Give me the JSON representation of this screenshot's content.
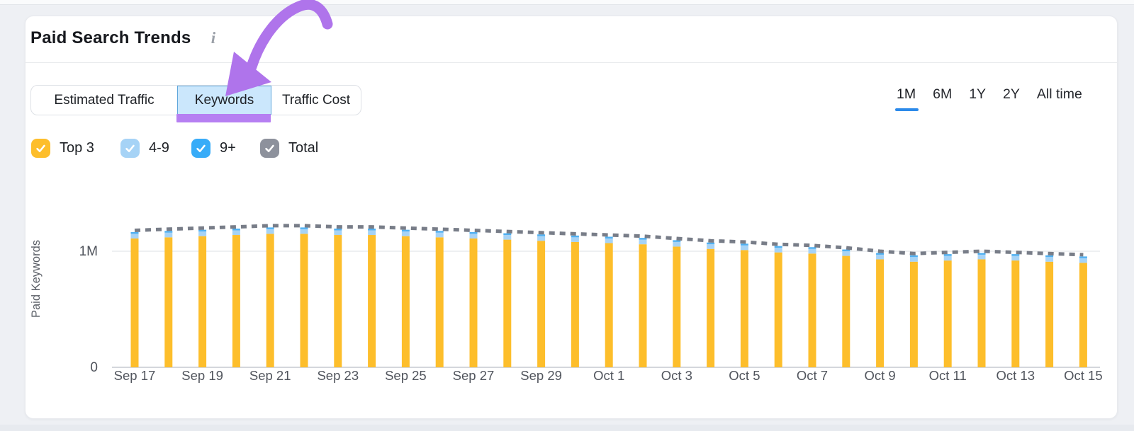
{
  "colors": {
    "page_bg": "#EEF0F4",
    "card_bg": "#FFFFFF",
    "divider": "#E8EAED",
    "accent_blue": "#2C8AEA",
    "active_tab_bg": "#CBE7FC",
    "active_tab_border": "#5FA7DC",
    "annotation_arrow_purple": "#AF74EB",
    "annotation_underline_purple": "#B67FF2",
    "bar_yellow": "#FDBE2B",
    "bar_light_blue": "#A6D3F6",
    "bar_blue": "#38ACF8",
    "total_line_gray": "#787D88"
  },
  "header": {
    "title": "Paid Search Trends",
    "info_icon": "i"
  },
  "tabs": [
    {
      "label": "Estimated Traffic",
      "active": false
    },
    {
      "label": "Keywords",
      "active": true
    },
    {
      "label": "Traffic Cost",
      "active": false
    }
  ],
  "time_ranges": [
    {
      "label": "1M",
      "active": true
    },
    {
      "label": "6M",
      "active": false
    },
    {
      "label": "1Y",
      "active": false
    },
    {
      "label": "2Y",
      "active": false
    },
    {
      "label": "All time",
      "active": false
    }
  ],
  "legend": [
    {
      "label": "Top 3",
      "color": "#FDBE2B",
      "checked": true
    },
    {
      "label": "4-9",
      "color": "#A6D3F6",
      "checked": true
    },
    {
      "label": "9+",
      "color": "#38ACF8",
      "checked": true
    },
    {
      "label": "Total",
      "color": "#8D919C",
      "checked": true
    }
  ],
  "chart_data": {
    "type": "stacked-bar-with-line",
    "title": "Paid Search Trends",
    "xlabel": "",
    "ylabel": "Paid Keywords",
    "ylim": [
      0,
      1400000
    ],
    "grid": "horizontal line at 1M only",
    "legend_position": "top-left checkboxes",
    "yticks": [
      {
        "value": 0,
        "label": "0"
      },
      {
        "value": 1000000,
        "label": "1M"
      }
    ],
    "x_tick_every": 2,
    "categories": [
      "Sep 17",
      "Sep 18",
      "Sep 19",
      "Sep 20",
      "Sep 21",
      "Sep 22",
      "Sep 23",
      "Sep 24",
      "Sep 25",
      "Sep 26",
      "Sep 27",
      "Sep 28",
      "Sep 29",
      "Sep 30",
      "Oct 1",
      "Oct 2",
      "Oct 3",
      "Oct 4",
      "Oct 5",
      "Oct 6",
      "Oct 7",
      "Oct 8",
      "Oct 9",
      "Oct 10",
      "Oct 11",
      "Oct 12",
      "Oct 13",
      "Oct 14",
      "Oct 15"
    ],
    "series": [
      {
        "name": "Top 3",
        "type": "bar",
        "color": "#FDBE2B",
        "values": [
          1110000,
          1120000,
          1130000,
          1140000,
          1150000,
          1150000,
          1140000,
          1140000,
          1130000,
          1120000,
          1110000,
          1100000,
          1090000,
          1080000,
          1070000,
          1060000,
          1040000,
          1020000,
          1010000,
          990000,
          980000,
          960000,
          930000,
          910000,
          920000,
          930000,
          920000,
          910000,
          900000
        ]
      },
      {
        "name": "4-9",
        "type": "bar",
        "color": "#A6D3F6",
        "values": [
          40000,
          40000,
          40000,
          40000,
          40000,
          40000,
          40000,
          40000,
          40000,
          40000,
          40000,
          40000,
          40000,
          40000,
          40000,
          40000,
          40000,
          40000,
          40000,
          40000,
          40000,
          40000,
          40000,
          40000,
          40000,
          40000,
          40000,
          40000,
          40000
        ]
      },
      {
        "name": "9+",
        "type": "bar",
        "color": "#4FB0F2",
        "values": [
          15000,
          15000,
          15000,
          15000,
          15000,
          15000,
          15000,
          15000,
          15000,
          15000,
          15000,
          15000,
          15000,
          15000,
          15000,
          15000,
          15000,
          15000,
          15000,
          15000,
          15000,
          15000,
          15000,
          15000,
          15000,
          15000,
          15000,
          15000,
          15000
        ]
      },
      {
        "name": "Total",
        "type": "line",
        "style": "dashed",
        "color": "#787D88",
        "values": [
          1180000,
          1190000,
          1200000,
          1210000,
          1220000,
          1220000,
          1210000,
          1210000,
          1200000,
          1190000,
          1180000,
          1170000,
          1160000,
          1150000,
          1140000,
          1130000,
          1110000,
          1090000,
          1080000,
          1060000,
          1050000,
          1030000,
          1000000,
          980000,
          990000,
          1000000,
          990000,
          980000,
          970000
        ]
      }
    ]
  }
}
